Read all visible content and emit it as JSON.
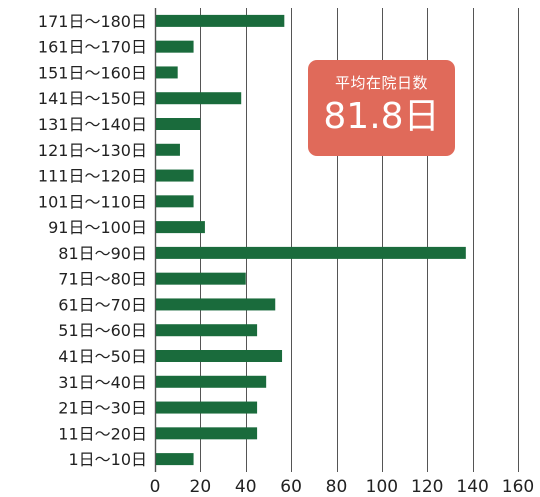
{
  "colors": {
    "bar": "#1a6b3c",
    "grid": "#555555",
    "badge_bg": "#e06a5a",
    "badge_text": "#ffffff"
  },
  "badge": {
    "label": "平均在院日数",
    "value": "81.8日"
  },
  "chart_data": {
    "type": "bar",
    "orientation": "horizontal",
    "categories": [
      "171日〜180日",
      "161日〜170日",
      "151日〜160日",
      "141日〜150日",
      "131日〜140日",
      "121日〜130日",
      "111日〜120日",
      "101日〜110日",
      "91日〜100日",
      "81日〜90日",
      "71日〜80日",
      "61日〜70日",
      "51日〜60日",
      "41日〜50日",
      "31日〜40日",
      "21日〜30日",
      "11日〜20日",
      "1日〜10日"
    ],
    "values": [
      57,
      17,
      10,
      38,
      20,
      11,
      17,
      17,
      22,
      137,
      40,
      53,
      45,
      56,
      49,
      45,
      45,
      17
    ],
    "xlim": [
      0,
      160
    ],
    "xticks": [
      0,
      20,
      40,
      60,
      80,
      100,
      120,
      140,
      160
    ],
    "grid": "vertical"
  }
}
